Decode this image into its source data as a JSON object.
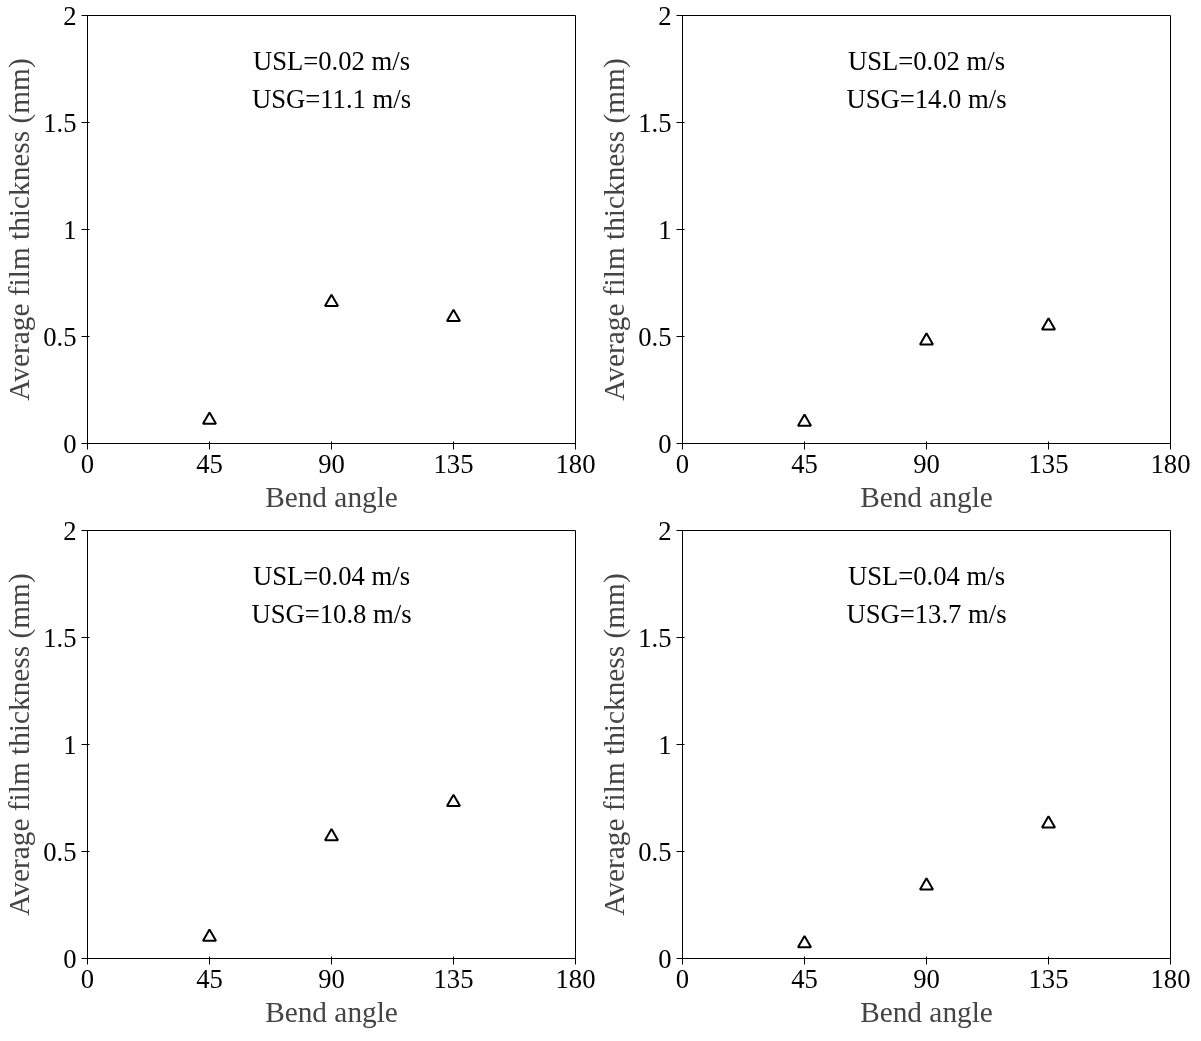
{
  "chart_data": [
    {
      "type": "scatter",
      "xlabel": "Bend angle",
      "ylabel": "Average film thickness (mm)",
      "x": [
        45,
        90,
        135
      ],
      "values": [
        0.11,
        0.66,
        0.59
      ],
      "color": "#000000",
      "marker": "triangle",
      "xlim": [
        0,
        180
      ],
      "ylim": [
        0,
        2
      ],
      "xticks": [
        0,
        45,
        90,
        135,
        180
      ],
      "yticks": [
        0,
        0.5,
        1,
        1.5,
        2
      ],
      "grid": false,
      "annotations": [
        "USL=0.02 m/s",
        "USG=11.1 m/s"
      ]
    },
    {
      "type": "scatter",
      "xlabel": "Bend angle",
      "ylabel": "Average film thickness (mm)",
      "x": [
        45,
        90,
        135
      ],
      "values": [
        0.1,
        0.48,
        0.55
      ],
      "color": "#000000",
      "marker": "triangle",
      "xlim": [
        0,
        180
      ],
      "ylim": [
        0,
        2
      ],
      "xticks": [
        0,
        45,
        90,
        135,
        180
      ],
      "yticks": [
        0,
        0.5,
        1,
        1.5,
        2
      ],
      "grid": false,
      "annotations": [
        "USL=0.02 m/s",
        "USG=14.0 m/s"
      ]
    },
    {
      "type": "scatter",
      "xlabel": "Bend angle",
      "ylabel": "Average film thickness (mm)",
      "x": [
        45,
        90,
        135
      ],
      "values": [
        0.1,
        0.57,
        0.73
      ],
      "color": "#000000",
      "marker": "triangle",
      "xlim": [
        0,
        180
      ],
      "ylim": [
        0,
        2
      ],
      "xticks": [
        0,
        45,
        90,
        135,
        180
      ],
      "yticks": [
        0,
        0.5,
        1,
        1.5,
        2
      ],
      "grid": false,
      "annotations": [
        "USL=0.04 m/s",
        "USG=10.8 m/s"
      ]
    },
    {
      "type": "scatter",
      "xlabel": "Bend angle",
      "ylabel": "Average film thickness (mm)",
      "x": [
        45,
        90,
        135
      ],
      "values": [
        0.07,
        0.34,
        0.63
      ],
      "color": "#000000",
      "marker": "triangle",
      "xlim": [
        0,
        180
      ],
      "ylim": [
        0,
        2
      ],
      "xticks": [
        0,
        45,
        90,
        135,
        180
      ],
      "yticks": [
        0,
        0.5,
        1,
        1.5,
        2
      ],
      "grid": false,
      "annotations": [
        "USL=0.04 m/s",
        "USG=13.7 m/s"
      ]
    }
  ]
}
